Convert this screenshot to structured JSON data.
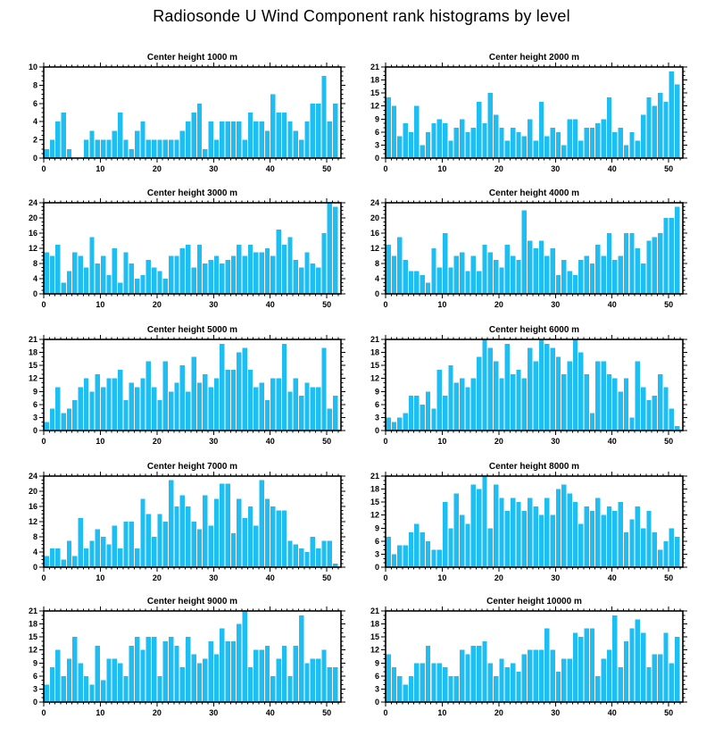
{
  "page_title": "Radiosonde U Wind Component rank histograms by level",
  "chart_data": {
    "type": "bar",
    "layout": "5 rows x 2 columns of rank histograms",
    "bar_color": "#1fbef2",
    "axis_color": "#000000",
    "x_major_ticks": [
      0,
      10,
      20,
      30,
      40,
      50
    ],
    "xlim": [
      0,
      52.5
    ],
    "bins_per_panel": 52,
    "grid": "off",
    "panels": [
      {
        "title": "Center height 1000 m",
        "ylim": [
          0,
          10
        ],
        "ystep": 2,
        "values": [
          1,
          2,
          4,
          5,
          1,
          0,
          0,
          2,
          3,
          2,
          2,
          2,
          3,
          5,
          2,
          1,
          3,
          4,
          2,
          2,
          2,
          2,
          2,
          2,
          3,
          4,
          5,
          6,
          1,
          4,
          2,
          4,
          4,
          4,
          4,
          2,
          5,
          4,
          4,
          3,
          7,
          5,
          5,
          4,
          3,
          2,
          4,
          6,
          6,
          9,
          4,
          6
        ]
      },
      {
        "title": "Center height 2000 m",
        "ylim": [
          0,
          21
        ],
        "ystep": 3,
        "values": [
          14,
          12,
          5,
          8,
          6,
          12,
          3,
          6,
          8,
          9,
          8,
          4,
          7,
          9,
          6,
          7,
          13,
          8,
          15,
          10,
          7,
          4,
          7,
          6,
          5,
          9,
          4,
          13,
          5,
          7,
          6,
          3,
          9,
          9,
          4,
          7,
          7,
          8,
          9,
          14,
          6,
          7,
          3,
          6,
          4,
          10,
          14,
          12,
          15,
          13,
          20,
          17
        ]
      },
      {
        "title": "Center height 3000 m",
        "ylim": [
          0,
          24
        ],
        "ystep": 4,
        "values": [
          11,
          10,
          13,
          3,
          6,
          11,
          10,
          7,
          15,
          8,
          10,
          5,
          12,
          3,
          11,
          8,
          4,
          5,
          9,
          7,
          6,
          4,
          10,
          10,
          12,
          13,
          7,
          13,
          8,
          9,
          10,
          8,
          9,
          10,
          13,
          10,
          13,
          11,
          11,
          12,
          10,
          17,
          13,
          15,
          9,
          7,
          11,
          8,
          7,
          16,
          24,
          23
        ]
      },
      {
        "title": "Center height 4000 m",
        "ylim": [
          0,
          24
        ],
        "ystep": 4,
        "values": [
          13,
          10,
          15,
          9,
          6,
          6,
          5,
          3,
          12,
          7,
          16,
          7,
          10,
          11,
          6,
          10,
          6,
          13,
          11,
          9,
          7,
          13,
          10,
          9,
          22,
          14,
          12,
          14,
          10,
          12,
          5,
          9,
          6,
          5,
          9,
          10,
          8,
          13,
          10,
          16,
          9,
          10,
          16,
          16,
          12,
          8,
          14,
          15,
          16,
          20,
          20,
          23
        ]
      },
      {
        "title": "Center height 5000 m",
        "ylim": [
          0,
          21
        ],
        "ystep": 3,
        "values": [
          2,
          5,
          10,
          4,
          5,
          7,
          10,
          12,
          9,
          13,
          10,
          12,
          12,
          14,
          7,
          11,
          10,
          12,
          16,
          10,
          7,
          16,
          9,
          11,
          15,
          9,
          17,
          11,
          13,
          10,
          12,
          20,
          14,
          14,
          18,
          19,
          14,
          10,
          11,
          7,
          12,
          12,
          20,
          9,
          12,
          8,
          11,
          10,
          10,
          19,
          5,
          8
        ]
      },
      {
        "title": "Center height 6000 m",
        "ylim": [
          0,
          21
        ],
        "ystep": 3,
        "values": [
          3,
          2,
          3,
          4,
          8,
          8,
          6,
          9,
          5,
          14,
          8,
          15,
          11,
          12,
          10,
          12,
          17,
          21,
          19,
          16,
          12,
          20,
          13,
          14,
          12,
          19,
          16,
          21,
          20,
          19,
          17,
          13,
          16,
          21,
          18,
          13,
          4,
          16,
          16,
          13,
          12,
          9,
          12,
          3,
          16,
          10,
          7,
          8,
          13,
          10,
          5,
          1
        ]
      },
      {
        "title": "Center height 7000 m",
        "ylim": [
          0,
          24
        ],
        "ystep": 4,
        "values": [
          3,
          5,
          5,
          2,
          7,
          3,
          13,
          5,
          7,
          10,
          8,
          6,
          11,
          5,
          12,
          12,
          5,
          18,
          14,
          8,
          14,
          12,
          23,
          16,
          19,
          16,
          12,
          10,
          19,
          11,
          18,
          22,
          22,
          9,
          18,
          13,
          16,
          11,
          23,
          18,
          16,
          15,
          15,
          7,
          6,
          5,
          4,
          8,
          5,
          7,
          7,
          1
        ]
      },
      {
        "title": "Center height 8000 m",
        "ylim": [
          0,
          21
        ],
        "ystep": 3,
        "values": [
          7,
          3,
          5,
          5,
          8,
          10,
          8,
          6,
          4,
          4,
          15,
          9,
          17,
          12,
          10,
          19,
          18,
          21,
          9,
          19,
          16,
          13,
          16,
          15,
          13,
          16,
          14,
          12,
          16,
          12,
          18,
          19,
          17,
          15,
          10,
          14,
          13,
          16,
          12,
          14,
          13,
          15,
          8,
          11,
          14,
          9,
          13,
          8,
          4,
          6,
          9,
          7
        ]
      },
      {
        "title": "Center height 9000 m",
        "ylim": [
          0,
          21
        ],
        "ystep": 3,
        "values": [
          4,
          8,
          12,
          6,
          10,
          15,
          9,
          6,
          4,
          13,
          5,
          10,
          10,
          9,
          6,
          13,
          15,
          12,
          15,
          15,
          6,
          14,
          15,
          13,
          8,
          15,
          11,
          9,
          10,
          14,
          11,
          17,
          14,
          14,
          18,
          21,
          8,
          12,
          12,
          13,
          6,
          10,
          13,
          6,
          13,
          20,
          9,
          10,
          10,
          12,
          8,
          8
        ]
      },
      {
        "title": "Center height 10000 m",
        "ylim": [
          0,
          21
        ],
        "ystep": 3,
        "values": [
          11,
          8,
          6,
          4,
          6,
          9,
          9,
          13,
          9,
          9,
          8,
          6,
          6,
          12,
          11,
          13,
          13,
          14,
          9,
          6,
          10,
          8,
          9,
          7,
          11,
          12,
          12,
          12,
          17,
          12,
          7,
          10,
          10,
          16,
          15,
          17,
          17,
          6,
          10,
          12,
          20,
          8,
          14,
          17,
          19,
          16,
          8,
          11,
          11,
          16,
          9,
          15
        ]
      }
    ]
  }
}
